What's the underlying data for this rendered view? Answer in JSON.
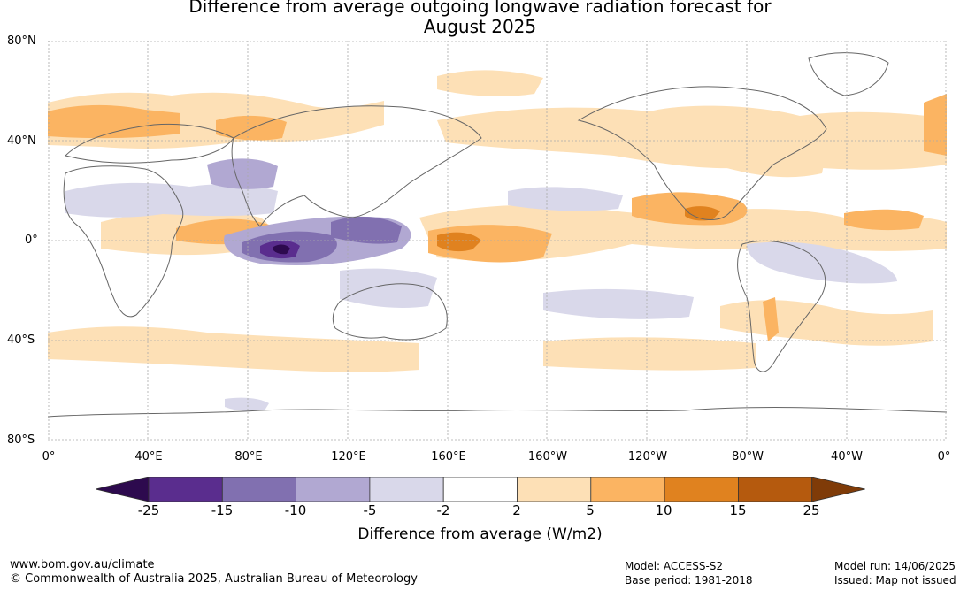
{
  "title_line1": "Difference from average outgoing longwave radiation forecast for",
  "title_line2": "August 2025",
  "lat_labels": [
    "80°N",
    "40°N",
    "0°",
    "40°S",
    "80°S"
  ],
  "lon_labels": [
    "0°",
    "40°E",
    "80°E",
    "120°E",
    "160°E",
    "160°W",
    "120°W",
    "80°W",
    "40°W",
    "0°"
  ],
  "legend": {
    "ticks": [
      "-25",
      "-15",
      "-10",
      "-5",
      "-2",
      "2",
      "5",
      "10",
      "15",
      "25"
    ],
    "colors": [
      "#2d0a4e",
      "#5a2d8e",
      "#8170b0",
      "#b1a8d2",
      "#d9d8ea",
      "#ffffff",
      "#fde0b6",
      "#fbb462",
      "#e0821f",
      "#b55a0e",
      "#7f3b08"
    ],
    "label": "Difference from average (W/m2)"
  },
  "footer": {
    "url": "www.bom.gov.au/climate",
    "copyright": "© Commonwealth of Australia 2025, Australian Bureau of Meteorology",
    "model": "Model: ACCESS-S2",
    "base_period": "Base period: 1981-2018",
    "model_run": "Model run: 14/06/2025",
    "issued": "Issued: Map not issued"
  }
}
